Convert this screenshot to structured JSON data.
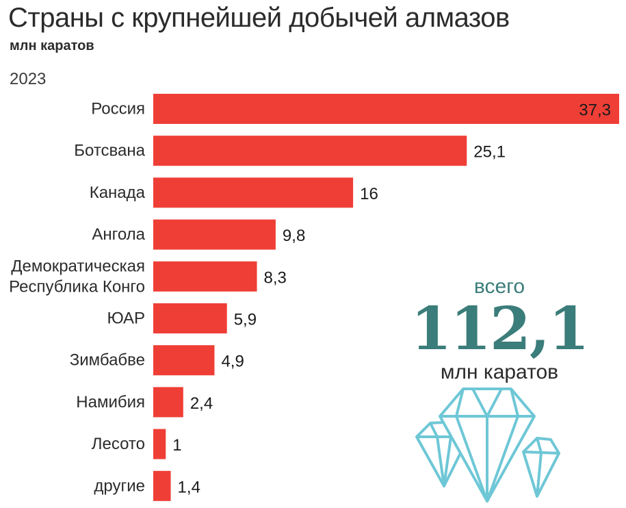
{
  "header": {
    "title": "Страны с крупнейшей добычей алмазов",
    "subtitle": "млн каратов",
    "year": "2023"
  },
  "total": {
    "word": "всего",
    "value": "112,1",
    "unit": "млн каратов"
  },
  "colors": {
    "bar": "#ef3e36",
    "accent": "#3b7d7a",
    "gem": "#6ec7d6",
    "text": "#2b2b2b"
  },
  "chart_data": {
    "type": "bar",
    "orientation": "horizontal",
    "title": "Страны с крупнейшей добычей алмазов",
    "subtitle": "млн каратов",
    "categories": [
      [
        "Россия"
      ],
      [
        "Ботсвана"
      ],
      [
        "Канада"
      ],
      [
        "Ангола"
      ],
      [
        "Демократическая",
        "Республика Конго"
      ],
      [
        "ЮАР"
      ],
      [
        "Зимбабве"
      ],
      [
        "Намибия"
      ],
      [
        "Лесото"
      ],
      [
        "другие"
      ]
    ],
    "values": [
      37.3,
      25.1,
      16,
      9.8,
      8.3,
      5.9,
      4.9,
      2.4,
      1,
      1.4
    ],
    "value_labels": [
      "37,3",
      "25,1",
      "16",
      "9,8",
      "8,3",
      "5,9",
      "4,9",
      "2,4",
      "1",
      "1,4"
    ],
    "xlim": [
      0,
      37.3
    ],
    "grid": false,
    "legend": "none"
  }
}
